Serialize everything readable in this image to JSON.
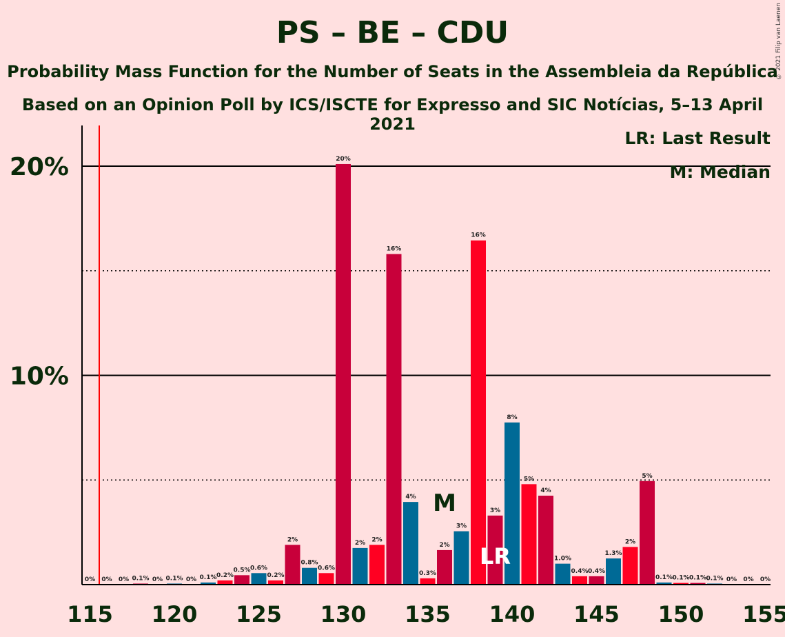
{
  "title": "PS – BE – CDU",
  "subtitle1": "Probability Mass Function for the Number of Seats in the Assembleia da República",
  "subtitle2": "Based on an Opinion Poll by ICS/ISCTE for Expresso and SIC Notícias, 5–13 April 2021",
  "copyright": "© 2021 Filip van Laenen",
  "legend": {
    "last_result": "LR: Last Result",
    "median": "M: Median"
  },
  "markers": {
    "median_label": "M",
    "median_seat": 136,
    "last_result_label": "LR",
    "last_result_seat": 139,
    "majority_line_seat": 116
  },
  "colors": {
    "crimson": "#C8003A",
    "red": "#FF0022",
    "blue": "#006A96",
    "majority_line": "#FF0000",
    "background": "#FFE0E0"
  },
  "chart_data": {
    "type": "bar",
    "ylim": [
      0,
      22
    ],
    "yticks_major": [
      10,
      20
    ],
    "ytick_labels": [
      "10%",
      "20%"
    ],
    "yticks_minor": [
      5,
      15
    ],
    "xticks": [
      115,
      120,
      125,
      130,
      135,
      140,
      145,
      150,
      155
    ],
    "xtick_labels": [
      "115",
      "120",
      "125",
      "130",
      "135",
      "140",
      "145",
      "150",
      "155"
    ],
    "bars": [
      {
        "seat": 115,
        "value": 0,
        "label": "0%",
        "color": "crimson"
      },
      {
        "seat": 116,
        "value": 0,
        "label": "0%",
        "color": "red"
      },
      {
        "seat": 117,
        "value": 0,
        "label": "0%",
        "color": "blue"
      },
      {
        "seat": 118,
        "value": 0.05,
        "label": "0.1%",
        "color": "crimson"
      },
      {
        "seat": 119,
        "value": 0,
        "label": "0%",
        "color": "red"
      },
      {
        "seat": 120,
        "value": 0.05,
        "label": "0.1%",
        "color": "blue"
      },
      {
        "seat": 121,
        "value": 0,
        "label": "0%",
        "color": "crimson"
      },
      {
        "seat": 122,
        "value": 0.1,
        "label": "0.1%",
        "color": "blue"
      },
      {
        "seat": 123,
        "value": 0.2,
        "label": "0.2%",
        "color": "red"
      },
      {
        "seat": 124,
        "value": 0.45,
        "label": "0.5%",
        "color": "crimson"
      },
      {
        "seat": 125,
        "value": 0.55,
        "label": "0.6%",
        "color": "blue"
      },
      {
        "seat": 126,
        "value": 0.2,
        "label": "0.2%",
        "color": "red"
      },
      {
        "seat": 127,
        "value": 1.9,
        "label": "2%",
        "color": "crimson"
      },
      {
        "seat": 128,
        "value": 0.8,
        "label": "0.8%",
        "color": "blue"
      },
      {
        "seat": 129,
        "value": 0.55,
        "label": "0.6%",
        "color": "red"
      },
      {
        "seat": 130,
        "value": 20.1,
        "label": "20%",
        "color": "crimson"
      },
      {
        "seat": 131,
        "value": 1.75,
        "label": "2%",
        "color": "blue"
      },
      {
        "seat": 132,
        "value": 1.9,
        "label": "2%",
        "color": "red"
      },
      {
        "seat": 133,
        "value": 15.8,
        "label": "16%",
        "color": "crimson"
      },
      {
        "seat": 134,
        "value": 3.95,
        "label": "4%",
        "color": "blue"
      },
      {
        "seat": 135,
        "value": 0.3,
        "label": "0.3%",
        "color": "red"
      },
      {
        "seat": 136,
        "value": 1.65,
        "label": "2%",
        "color": "crimson"
      },
      {
        "seat": 137,
        "value": 2.55,
        "label": "3%",
        "color": "blue"
      },
      {
        "seat": 138,
        "value": 16.45,
        "label": "16%",
        "color": "red"
      },
      {
        "seat": 139,
        "value": 3.3,
        "label": "3%",
        "color": "crimson"
      },
      {
        "seat": 140,
        "value": 7.75,
        "label": "8%",
        "color": "blue"
      },
      {
        "seat": 141,
        "value": 4.8,
        "label": "5%",
        "color": "red"
      },
      {
        "seat": 142,
        "value": 4.25,
        "label": "4%",
        "color": "crimson"
      },
      {
        "seat": 143,
        "value": 1.0,
        "label": "1.0%",
        "color": "blue"
      },
      {
        "seat": 144,
        "value": 0.4,
        "label": "0.4%",
        "color": "red"
      },
      {
        "seat": 145,
        "value": 0.4,
        "label": "0.4%",
        "color": "crimson"
      },
      {
        "seat": 146,
        "value": 1.25,
        "label": "1.3%",
        "color": "blue"
      },
      {
        "seat": 147,
        "value": 1.8,
        "label": "2%",
        "color": "red"
      },
      {
        "seat": 148,
        "value": 4.95,
        "label": "5%",
        "color": "crimson"
      },
      {
        "seat": 149,
        "value": 0.1,
        "label": "0.1%",
        "color": "blue"
      },
      {
        "seat": 150,
        "value": 0.08,
        "label": "0.1%",
        "color": "red"
      },
      {
        "seat": 151,
        "value": 0.08,
        "label": "0.1%",
        "color": "crimson"
      },
      {
        "seat": 152,
        "value": 0.05,
        "label": "0.1%",
        "color": "blue"
      },
      {
        "seat": 153,
        "value": 0,
        "label": "0%",
        "color": "red"
      },
      {
        "seat": 154,
        "value": 0,
        "label": "0%",
        "color": "crimson"
      },
      {
        "seat": 155,
        "value": 0,
        "label": "0%",
        "color": "blue"
      }
    ]
  }
}
